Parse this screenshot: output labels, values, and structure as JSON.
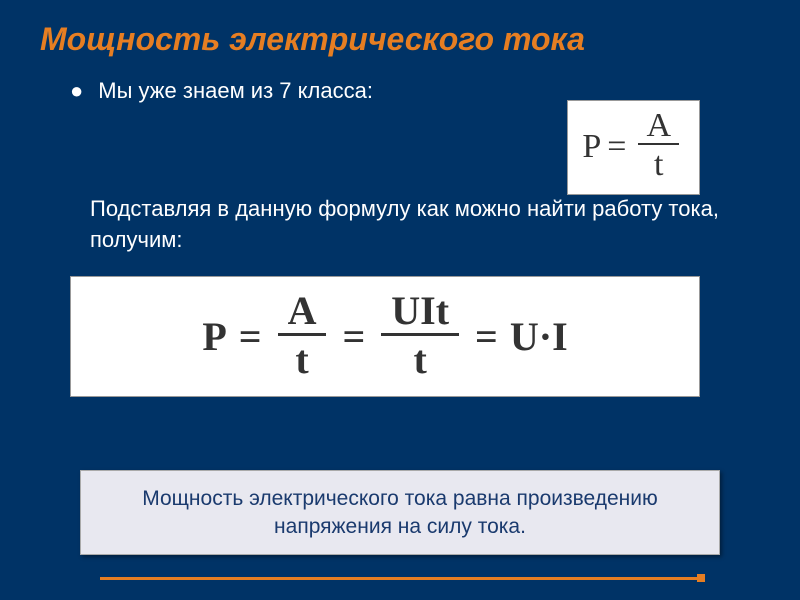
{
  "title": "Мощность электрического тока",
  "bullet_symbol": "●",
  "line1": "Мы уже знаем из 7 класса:",
  "formula_small": {
    "lhs": "P",
    "eq": "=",
    "numerator": "A",
    "denominator": "t"
  },
  "line2": "Подставляя в данную формулу как можно найти работу тока, получим:",
  "formula_large": {
    "lhs": "P",
    "eq": "=",
    "frac1_num": "A",
    "frac1_den": "t",
    "eq2": "=",
    "frac2_num": "UIt",
    "frac2_den": "t",
    "eq3": "=",
    "rhs": "U·I"
  },
  "footer": "Мощность электрического тока равна произведению напряжения на силу тока.",
  "colors": {
    "background": "#003366",
    "title_color": "#e67e22",
    "body_text": "#ffffff",
    "footer_box_bg": "#e8e8f0",
    "footer_text": "#1a3a6e",
    "decoration": "#e67e22",
    "formula_bg": "#ffffff",
    "formula_text": "#333333"
  },
  "typography": {
    "title_fontsize": 32,
    "body_fontsize": 22,
    "formula_small_fontsize": 34,
    "formula_large_fontsize": 40,
    "footer_fontsize": 21
  }
}
